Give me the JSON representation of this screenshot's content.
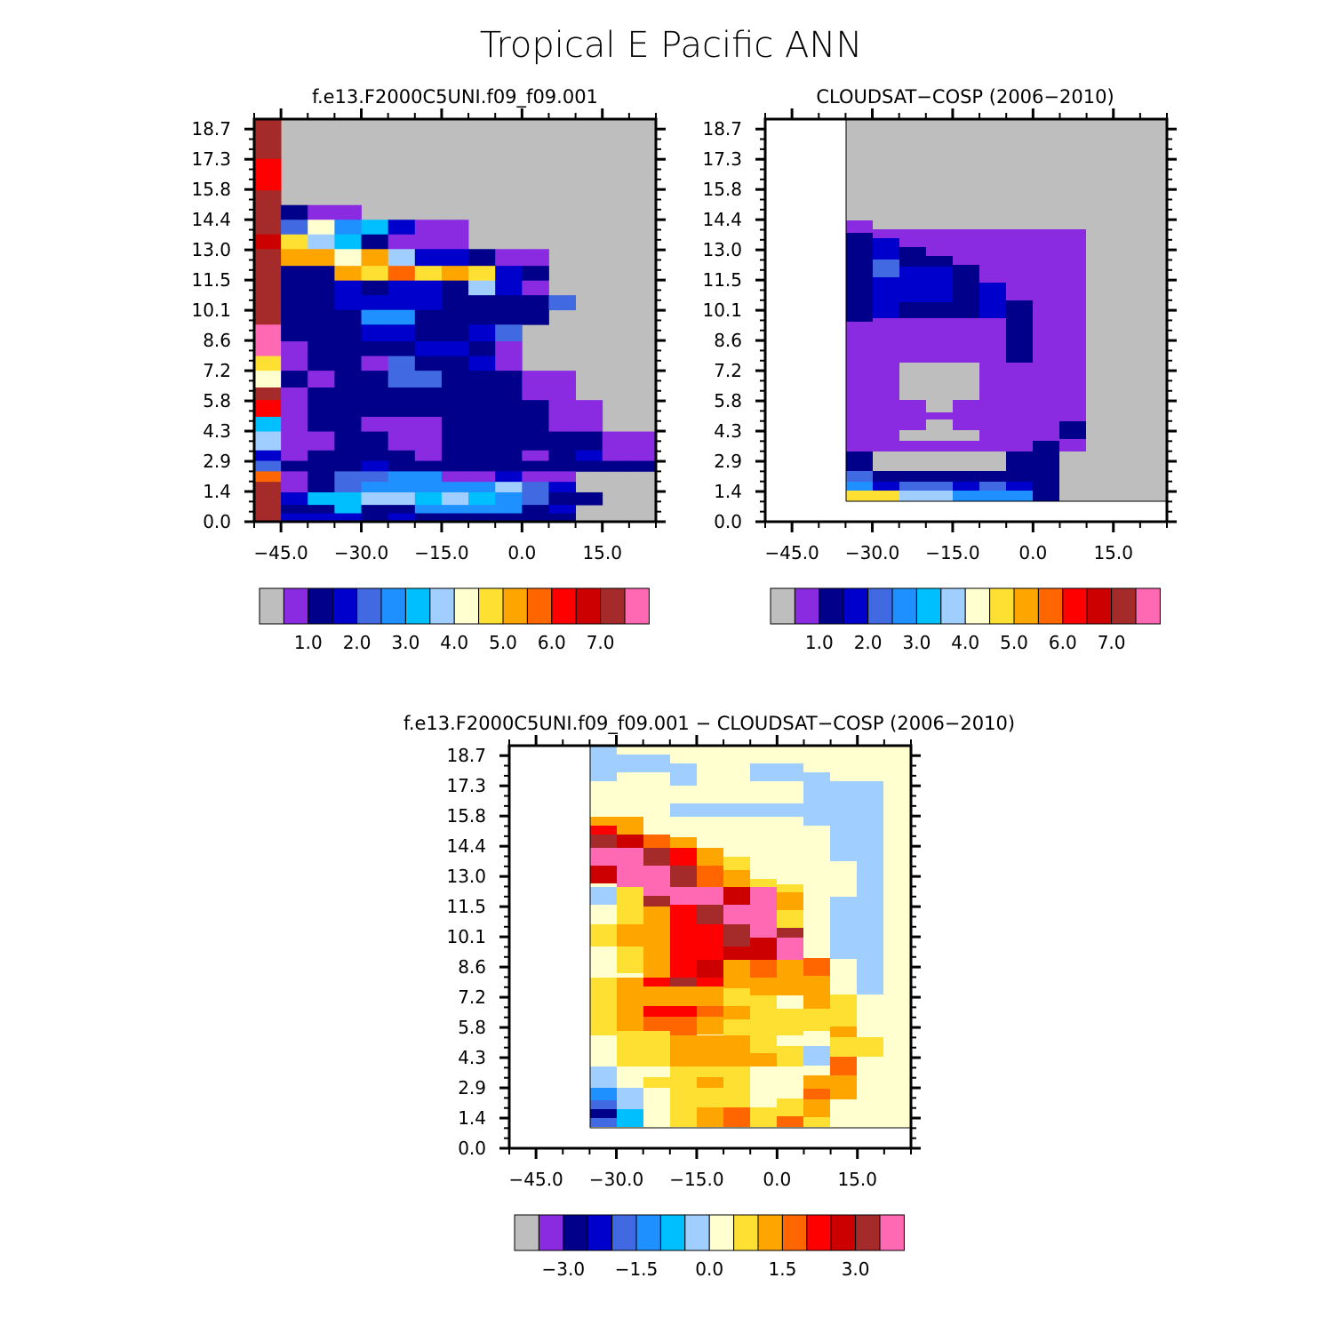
{
  "page_title": "Tropical E Pacific ANN",
  "colors": {
    "missing": "#bebebe",
    "levels": [
      "#8a2be2",
      "#00008b",
      "#0000cd",
      "#4169e1",
      "#1e90ff",
      "#00bfff",
      "#a0cfff",
      "#ffffd0",
      "#fee032",
      "#ffa500",
      "#ff6600",
      "#ff0000",
      "#cd0000",
      "#a52a2a",
      "#ff69b4"
    ]
  },
  "chart_data": [
    {
      "type": "heatmap",
      "id": "model",
      "title": "f.e13.F2000C5UNI.f09_f09.001",
      "xticks": [
        "−45.0",
        "−30.0",
        "−15.0",
        "0.0",
        "15.0"
      ],
      "xtick_values": [
        -45,
        -30,
        -15,
        0,
        15
      ],
      "yticks": [
        "18.7",
        "17.3",
        "15.8",
        "14.4",
        "13.0",
        "11.5",
        "10.1",
        "8.6",
        "7.2",
        "5.8",
        "4.3",
        "2.9",
        "1.4",
        "0.0"
      ],
      "xlim": [
        -50,
        25
      ],
      "ylim": [
        0,
        19.2
      ],
      "colorbar": {
        "labels": [
          "1.0",
          "2.0",
          "3.0",
          "4.0",
          "5.0",
          "6.0",
          "7.0"
        ],
        "label_positions": [
          2,
          4,
          6,
          8,
          10,
          12,
          14
        ]
      },
      "x_edges": [
        -50,
        -45,
        -40,
        -35,
        -30,
        -25,
        -20,
        -15,
        -10,
        -5,
        0,
        5,
        10,
        15,
        20,
        25
      ],
      "y_edges": [
        0,
        0.4,
        0.8,
        1.4,
        1.9,
        2.4,
        2.9,
        3.4,
        4.3,
        5.0,
        5.8,
        6.4,
        7.2,
        7.9,
        8.6,
        9.4,
        10.1,
        10.8,
        11.5,
        12.2,
        13.0,
        13.7,
        14.4,
        15.1,
        15.8,
        17.3,
        18.7,
        19.2
      ],
      "grid_rows_top_to_bottom": [
        "e0000000000000",
        "e0000000000000",
        "c0000000000000",
        "e0000000000000",
        "e211000000000",
        "e48563110000000",
        "d97621110000000",
        "eaa8a7332110000",
        "e22a9b9a932000",
        "e2232332731000",
        "e2233332222400",
        "e222552222200",
        "f22233223400000",
        "f1222233210000",
        "9122142231000",
        "8212244222110",
        "e1222222221100",
        "c1222222222110",
        "61221112222110",
        "7112211222222110",
        "3122221222123111",
        "4222322222222221",
        "b1244551131100",
        "e1245555574300",
        "e3667767654220",
        "e2262255552300",
        "e3332322222200"
      ]
    },
    {
      "type": "heatmap",
      "id": "obs",
      "title": "CLOUDSAT−COSP (2006−2010)",
      "xticks": [
        "−45.0",
        "−30.0",
        "−15.0",
        "0.0",
        "15.0"
      ],
      "xtick_values": [
        -45,
        -30,
        -15,
        0,
        15
      ],
      "yticks": [
        "18.7",
        "17.3",
        "15.8",
        "14.4",
        "13.0",
        "11.5",
        "10.1",
        "8.6",
        "7.2",
        "5.8",
        "4.3",
        "2.9",
        "1.4",
        "0.0"
      ],
      "xlim": [
        -50,
        25
      ],
      "ylim": [
        0,
        19.2
      ],
      "colorbar": {
        "labels": [
          "1.0",
          "2.0",
          "3.0",
          "4.0",
          "5.0",
          "6.0",
          "7.0"
        ],
        "label_positions": [
          2,
          4,
          6,
          8,
          10,
          12,
          14
        ]
      }
    },
    {
      "type": "heatmap",
      "id": "diff",
      "title": "f.e13.F2000C5UNI.f09_f09.001 − CLOUDSAT−COSP (2006−2010)",
      "xticks": [
        "−45.0",
        "−30.0",
        "−15.0",
        "0.0",
        "15.0"
      ],
      "xtick_values": [
        -45,
        -30,
        -15,
        0,
        15
      ],
      "yticks": [
        "18.7",
        "17.3",
        "15.8",
        "14.4",
        "13.0",
        "11.5",
        "10.1",
        "8.6",
        "7.2",
        "5.8",
        "4.3",
        "2.9",
        "1.4",
        "0.0"
      ],
      "xlim": [
        -50,
        25
      ],
      "ylim": [
        0,
        19.2
      ],
      "colorbar": {
        "labels": [
          "−3.0",
          "−1.5",
          "0.0",
          "1.5",
          "3.0"
        ],
        "label_positions": [
          2,
          5,
          8,
          11,
          14
        ]
      }
    }
  ]
}
